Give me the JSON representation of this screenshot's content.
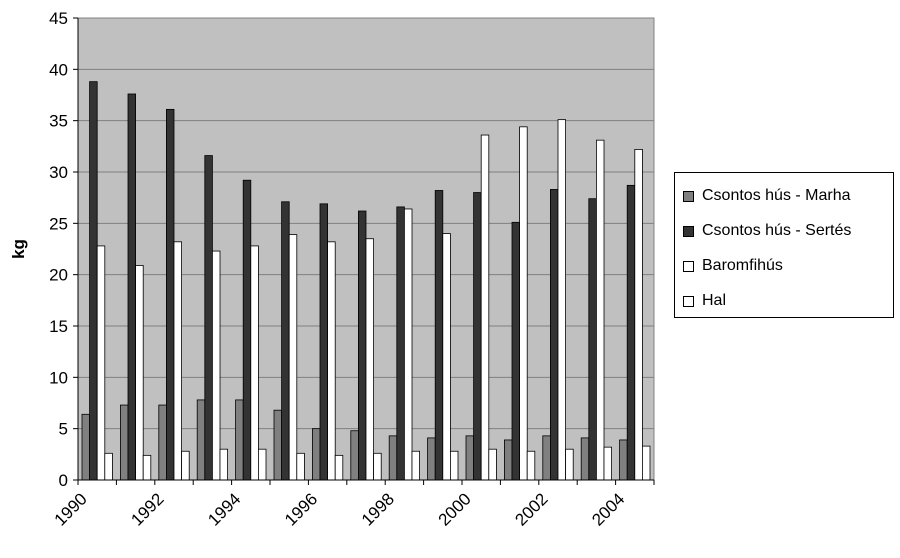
{
  "chart_data": {
    "type": "bar",
    "title": "",
    "xlabel": "",
    "ylabel": "kg",
    "ylim": [
      0,
      45
    ],
    "ytick_step": 5,
    "grid": true,
    "legend_position": "right",
    "categories": [
      "1990",
      "1991",
      "1992",
      "1993",
      "1994",
      "1995",
      "1996",
      "1997",
      "1998",
      "1999",
      "2000",
      "2001",
      "2002",
      "2003",
      "2004"
    ],
    "x_tick_labels": [
      "1990",
      "",
      "1992",
      "",
      "1994",
      "",
      "1996",
      "",
      "1998",
      "",
      "2000",
      "",
      "2002",
      "",
      "2004"
    ],
    "series": [
      {
        "name": "Csontos hús - Marha",
        "color": "#808080",
        "values": [
          6.4,
          7.3,
          7.3,
          7.8,
          7.8,
          6.8,
          5.0,
          4.8,
          4.3,
          4.1,
          4.3,
          3.9,
          4.3,
          4.1,
          3.9
        ]
      },
      {
        "name": "Csontos hús - Sertés",
        "color": "#333333",
        "values": [
          38.8,
          37.6,
          36.1,
          31.6,
          29.2,
          27.1,
          26.9,
          26.2,
          26.6,
          28.2,
          28.0,
          25.1,
          28.3,
          27.4,
          28.7
        ]
      },
      {
        "name": "Baromfihús",
        "color": "#ffffff",
        "values": [
          22.8,
          20.9,
          23.2,
          22.3,
          22.8,
          23.9,
          23.2,
          23.5,
          26.4,
          24.0,
          33.6,
          34.4,
          35.1,
          33.1,
          32.2
        ]
      },
      {
        "name": "Hal",
        "color": "#ffffff",
        "values": [
          2.6,
          2.4,
          2.8,
          3.0,
          3.0,
          2.6,
          2.4,
          2.6,
          2.8,
          2.8,
          3.0,
          2.8,
          3.0,
          3.2,
          3.3
        ]
      }
    ],
    "plot_background": "#c0c0c0"
  }
}
